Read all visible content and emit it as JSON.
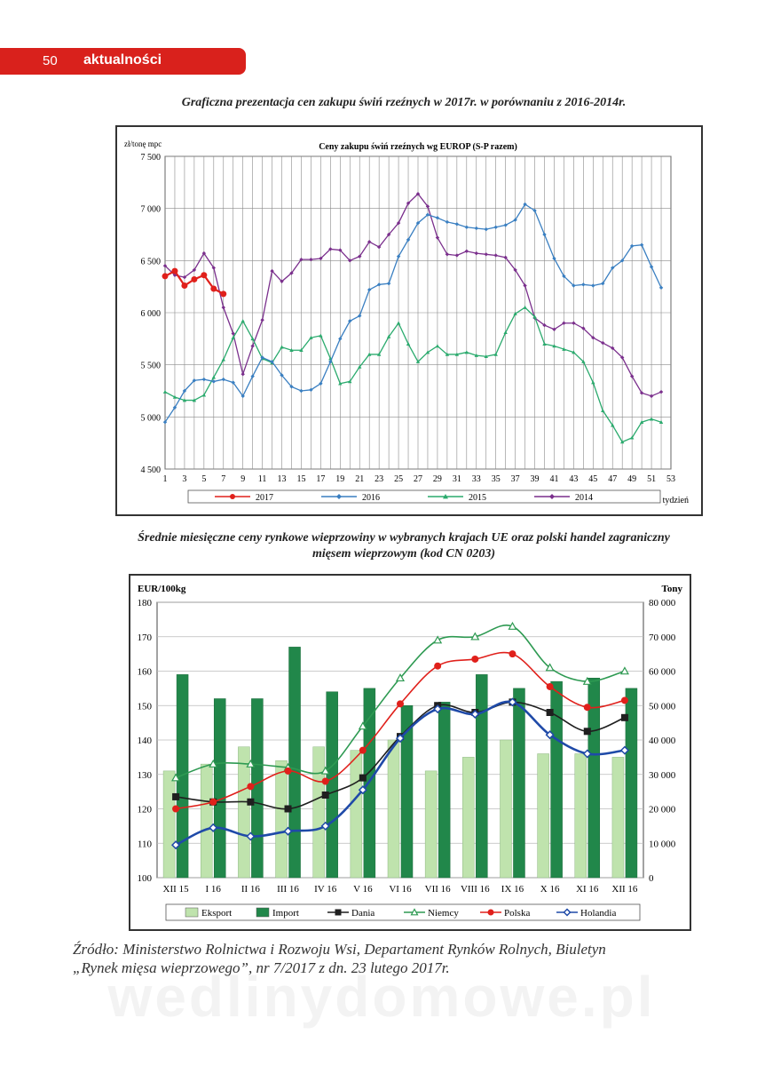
{
  "header": {
    "page_number": "50",
    "section": "aktualności"
  },
  "caption1": "Graficzna prezentacja cen zakupu świń rzeźnych w 2017r. w porównaniu z 2016-2014r.",
  "caption2_line1": "Średnie miesięczne ceny rynkowe wieprzowiny w  wybranych krajach UE oraz polski handel zagraniczny",
  "caption2_line2": "mięsem wieprzowym (kod CN 0203)",
  "source_line1": "Źródło: Ministerstwo Rolnictwa i Rozwoju Wsi, Departament Rynków Rolnych, Biuletyn",
  "source_line2": "„Rynek mięsa wieprzowego”, nr 7/2017 z dn. 23 lutego 2017r.",
  "watermark": "wedlinydomowe.pl",
  "chart_data": [
    {
      "type": "line",
      "title": "Ceny zakupu świń rzeźnych  wg EUROP (S-P razem)",
      "ylabel": "zł/tonę  mpc",
      "xlabel": "tydzień",
      "ylim": [
        4500,
        7500
      ],
      "yticks": [
        "4 500",
        "5 000",
        "5 500",
        "6 000",
        "6 500",
        "7 000",
        "7 500"
      ],
      "xlim": [
        1,
        53
      ],
      "xticks": [
        "1",
        "3",
        "5",
        "7",
        "9",
        "11",
        "13",
        "15",
        "17",
        "19",
        "21",
        "23",
        "25",
        "27",
        "29",
        "31",
        "33",
        "35",
        "37",
        "39",
        "41",
        "43",
        "45",
        "47",
        "49",
        "51",
        "53"
      ],
      "series": [
        {
          "name": "2017",
          "color": "#e0201b",
          "marker": "circle",
          "values": [
            6350,
            6400,
            6260,
            6320,
            6360,
            6230,
            6180
          ]
        },
        {
          "name": "2016",
          "color": "#3a7fc1",
          "marker": "diamond",
          "values": [
            4950,
            5090,
            5250,
            5350,
            5360,
            5340,
            5360,
            5330,
            5200,
            5390,
            5570,
            5530,
            5400,
            5290,
            5250,
            5260,
            5320,
            5530,
            5750,
            5920,
            5970,
            6220,
            6270,
            6280,
            6540,
            6700,
            6860,
            6940,
            6910,
            6870,
            6850,
            6820,
            6810,
            6800,
            6820,
            6840,
            6890,
            7040,
            6980,
            6750,
            6520,
            6350,
            6260,
            6270,
            6260,
            6280,
            6430,
            6500,
            6640,
            6650,
            6440,
            6240
          ]
        },
        {
          "name": "2015",
          "color": "#2aaa6d",
          "marker": "triangle",
          "values": [
            5240,
            5190,
            5160,
            5160,
            5210,
            5380,
            5550,
            5760,
            5920,
            5750,
            5560,
            5520,
            5670,
            5640,
            5640,
            5760,
            5780,
            5560,
            5320,
            5340,
            5480,
            5600,
            5600,
            5770,
            5900,
            5700,
            5530,
            5620,
            5680,
            5600,
            5600,
            5620,
            5590,
            5580,
            5600,
            5810,
            5990,
            6050,
            5960,
            5700,
            5680,
            5650,
            5620,
            5530,
            5330,
            5060,
            4920,
            4760,
            4800,
            4950,
            4980,
            4950
          ]
        },
        {
          "name": "2014",
          "color": "#7a2f8c",
          "marker": "diamond",
          "values": [
            6450,
            6360,
            6340,
            6410,
            6570,
            6430,
            6050,
            5800,
            5410,
            5680,
            5930,
            6400,
            6300,
            6380,
            6510,
            6510,
            6520,
            6610,
            6600,
            6500,
            6540,
            6680,
            6630,
            6750,
            6860,
            7050,
            7140,
            7020,
            6720,
            6560,
            6550,
            6590,
            6570,
            6560,
            6550,
            6530,
            6410,
            6260,
            5950,
            5880,
            5840,
            5900,
            5900,
            5850,
            5760,
            5710,
            5660,
            5570,
            5390,
            5230,
            5200,
            5240
          ]
        }
      ]
    },
    {
      "type": "bar-line",
      "ylabel": "EUR/100kg",
      "y2label": "Tony",
      "ylim": [
        100,
        180
      ],
      "yticks": [
        "100",
        "110",
        "120",
        "130",
        "140",
        "150",
        "160",
        "170",
        "180"
      ],
      "y2lim": [
        0,
        80000
      ],
      "y2ticks": [
        "0",
        "10 000",
        "20 000",
        "30 000",
        "40 000",
        "50 000",
        "60 000",
        "70 000",
        "80 000"
      ],
      "categories": [
        "XII 15",
        "I 16",
        "II 16",
        "III 16",
        "IV 16",
        "V 16",
        "VI 16",
        "VII 16",
        "VIII 16",
        "IX 16",
        "X 16",
        "XI 16",
        "XII 16"
      ],
      "bars": [
        {
          "name": "Eksport",
          "color": "#bfe3ad",
          "axis": "right",
          "values": [
            31000,
            33000,
            38000,
            34000,
            38000,
            37000,
            40000,
            31000,
            35000,
            40000,
            36000,
            36000,
            35000
          ]
        },
        {
          "name": "Import",
          "color": "#21874a",
          "axis": "right",
          "values": [
            59000,
            52000,
            52000,
            67000,
            54000,
            55000,
            50000,
            51000,
            59000,
            55000,
            57000,
            58000,
            55000
          ]
        }
      ],
      "lines": [
        {
          "name": "Dania",
          "color": "#1f1f1f",
          "marker": "square",
          "values": [
            123.5,
            122,
            122,
            120,
            124,
            129,
            141,
            150,
            148,
            151,
            148,
            142.5,
            146.5
          ]
        },
        {
          "name": "Niemcy",
          "color": "#2e9a52",
          "marker": "triangle-open",
          "values": [
            129,
            133,
            133,
            132,
            131,
            144,
            158,
            169,
            170,
            173,
            161,
            157,
            160
          ]
        },
        {
          "name": "Polska",
          "color": "#e0201b",
          "marker": "circle",
          "values": [
            120,
            122,
            126.5,
            131,
            128,
            137,
            150.5,
            161.5,
            163.5,
            165,
            155.5,
            149.5,
            151.5
          ]
        },
        {
          "name": "Holandia",
          "color": "#1f4aa8",
          "marker": "diamond-open",
          "values": [
            109.5,
            114.5,
            112,
            113.5,
            115,
            125.5,
            140.5,
            149,
            147.5,
            151,
            141.5,
            136,
            137
          ]
        }
      ]
    }
  ]
}
